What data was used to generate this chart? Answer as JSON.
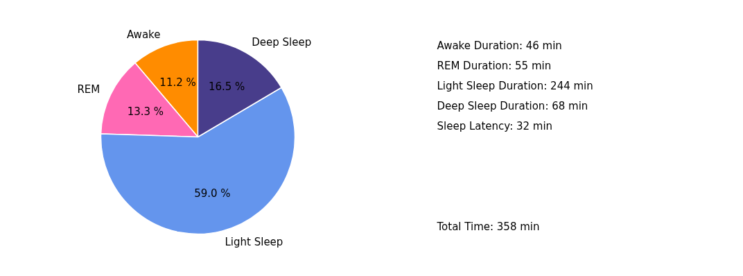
{
  "chart_data": {
    "type": "pie",
    "categories": [
      "Awake",
      "REM",
      "Light Sleep",
      "Deep Sleep"
    ],
    "values": [
      11.2,
      13.3,
      59.0,
      16.5
    ],
    "colors": [
      "#ff8c00",
      "#ff69b4",
      "#6495ed",
      "#483d8b"
    ],
    "value_labels": [
      "11.2 %",
      "13.3 %",
      "59.0 %",
      "16.5 %"
    ],
    "annotations": [
      "Awake Duration: 46 min",
      "REM Duration: 55 min",
      "Light Sleep Duration: 244 min",
      "Deep Sleep Duration: 68 min",
      "Sleep Latency: 32 min",
      "Total Time: 358 min"
    ]
  }
}
